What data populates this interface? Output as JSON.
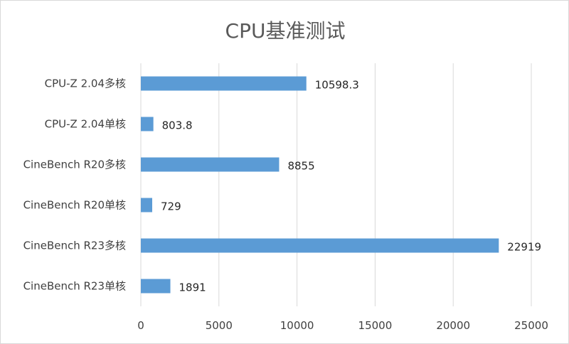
{
  "chart_data": {
    "type": "bar",
    "orientation": "horizontal",
    "title": "CPU基准测试",
    "categories": [
      "CPU-Z 2.04多核",
      "CPU-Z 2.04单核",
      "CineBench R20多核",
      "CineBench R20单核",
      "CineBench R23多核",
      "CineBench R23单核"
    ],
    "values": [
      10598.3,
      803.8,
      8855,
      729,
      22919,
      1891
    ],
    "data_labels": [
      "10598.3",
      "803.8",
      "8855",
      "729",
      "22919",
      "1891"
    ],
    "xlim": [
      0,
      25000
    ],
    "x_ticks": [
      "0",
      "5000",
      "10000",
      "15000",
      "20000",
      "25000"
    ],
    "xlabel": "",
    "ylabel": "",
    "grid": "vertical",
    "legend": "none",
    "bar_color": "#5b9bd5"
  }
}
